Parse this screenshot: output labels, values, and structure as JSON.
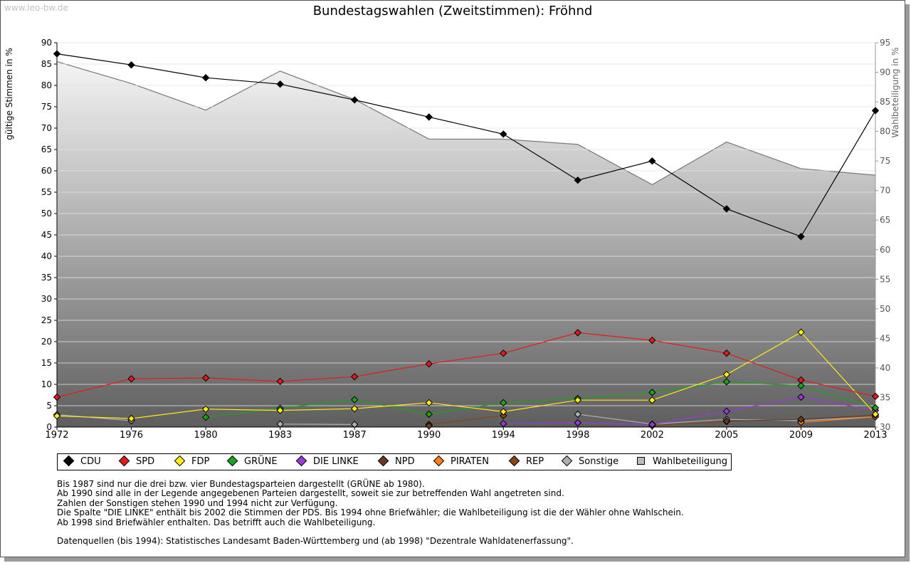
{
  "watermark": "www.leo-bw.de",
  "chart_data": {
    "type": "line",
    "title": "Bundestagswahlen (Zweitstimmen): Fröhnd",
    "ylabel": "gültige Stimmen in %",
    "y2label": "Wahlbeteiligung in %",
    "ylim": [
      0,
      90
    ],
    "y2lim": [
      30,
      95
    ],
    "yticks": [
      "0",
      "5",
      "10",
      "15",
      "20",
      "25",
      "30",
      "35",
      "40",
      "45",
      "50",
      "55",
      "60",
      "65",
      "70",
      "75",
      "80",
      "85",
      "90"
    ],
    "y2ticks": [
      "30",
      "35",
      "40",
      "45",
      "50",
      "55",
      "60",
      "65",
      "70",
      "75",
      "80",
      "85",
      "90",
      "95"
    ],
    "grid": true,
    "x": [
      "1972",
      "1976",
      "1980",
      "1983",
      "1987",
      "1990",
      "1994",
      "1998",
      "2002",
      "2005",
      "2009",
      "2013"
    ],
    "turnout": {
      "name": "Wahlbeteiligung",
      "color": "#bbbbbb",
      "values": [
        91.8,
        88.1,
        83.6,
        90.2,
        85.4,
        78.7,
        78.7,
        77.8,
        71.0,
        78.2,
        73.7,
        72.6
      ]
    },
    "series": [
      {
        "name": "CDU",
        "color": "#000000",
        "values": [
          87.4,
          84.8,
          81.8,
          80.3,
          76.6,
          72.6,
          68.6,
          57.8,
          62.3,
          51.1,
          44.6,
          74.1
        ]
      },
      {
        "name": "SPD",
        "color": "#e41a1a",
        "values": [
          7.0,
          11.3,
          11.5,
          10.7,
          11.8,
          14.8,
          17.3,
          22.1,
          20.3,
          17.3,
          11.0,
          7.2
        ]
      },
      {
        "name": "FDP",
        "color": "#ffeb15",
        "values": [
          2.6,
          2.0,
          4.2,
          3.9,
          4.3,
          5.7,
          3.6,
          6.3,
          6.3,
          12.3,
          22.2,
          3.0
        ]
      },
      {
        "name": "GRÜNE",
        "color": "#1ca31c",
        "values": [
          null,
          null,
          2.3,
          4.4,
          6.4,
          3.0,
          5.7,
          6.7,
          8.1,
          10.6,
          9.7,
          4.5
        ]
      },
      {
        "name": "DIE LINKE",
        "color": "#9a3ad6",
        "values": [
          null,
          null,
          null,
          null,
          null,
          null,
          0.8,
          1.0,
          0.6,
          3.7,
          7.0,
          3.9
        ]
      },
      {
        "name": "NPD",
        "color": "#6b3a1e",
        "values": [
          null,
          null,
          null,
          null,
          null,
          0.3,
          null,
          null,
          null,
          1.4,
          1.8,
          2.8
        ]
      },
      {
        "name": "PIRATEN",
        "color": "#ff7f1a",
        "values": [
          null,
          null,
          null,
          null,
          null,
          null,
          null,
          null,
          null,
          null,
          1.1,
          2.4
        ]
      },
      {
        "name": "REP",
        "color": "#8b4513",
        "values": [
          null,
          null,
          null,
          null,
          null,
          0.6,
          2.7,
          null,
          0.3,
          1.3,
          null,
          null
        ]
      },
      {
        "name": "Sonstige",
        "color": "#b0b0b0",
        "values": [
          2.9,
          1.5,
          null,
          0.7,
          0.6,
          null,
          null,
          3.0,
          0.7,
          1.8,
          1.5,
          2.4
        ]
      }
    ]
  },
  "legend": [
    "CDU",
    "SPD",
    "FDP",
    "GRÜNE",
    "DIE LINKE",
    "NPD",
    "PIRATEN",
    "REP",
    "Sonstige",
    "Wahlbeteiligung"
  ],
  "notes": [
    "Bis 1987 sind nur die drei bzw. vier Bundestagsparteien dargestellt (GRÜNE ab 1980).",
    "Ab 1990 sind alle in der Legende angegebenen Parteien dargestellt, soweit sie zur betreffenden Wahl angetreten sind.",
    "Zahlen der Sonstigen stehen 1990 und 1994 nicht zur Verfügung.",
    "Die Spalte \"DIE LINKE\" enthält bis 2002 die Stimmen der PDS. Bis 1994 ohne Briefwähler; die Wahlbeteiligung ist die der Wähler ohne Wahlschein.",
    "Ab 1998 sind Briefwähler enthalten. Das betrifft auch die Wahlbeteiligung."
  ],
  "source": "Datenquellen (bis 1994): Statistisches Landesamt Baden-Württemberg und (ab 1998) \"Dezentrale Wahldatenerfassung\"."
}
